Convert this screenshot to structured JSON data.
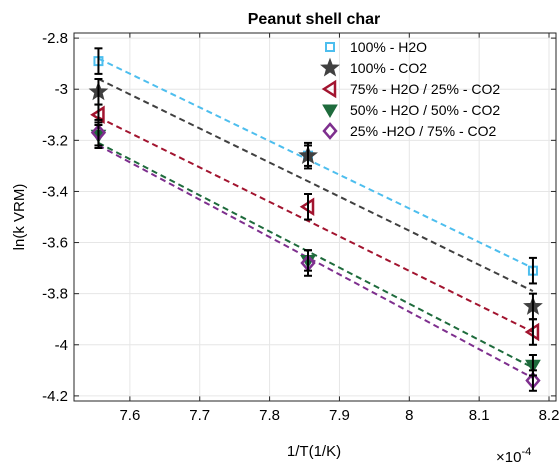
{
  "chart_data": {
    "type": "scatter",
    "title": "Peanut shell char",
    "xlabel": "1/T(1/K)",
    "ylabel": "ln(k VRM)",
    "x_multiplier_label": "×10",
    "x_multiplier_exponent": "-4",
    "x_ticks": [
      "7.6",
      "7.7",
      "7.8",
      "7.9",
      "8",
      "8.1",
      "8.2"
    ],
    "y_ticks": [
      "-2.8",
      "-3",
      "-3.2",
      "-3.4",
      "-3.6",
      "-3.8",
      "-4",
      "-4.2"
    ],
    "xlim": [
      7.52,
      8.21
    ],
    "ylim": [
      -4.22,
      -2.78
    ],
    "grid": true,
    "legend_position": "top-right",
    "series": [
      {
        "name": "100% - H2O",
        "marker": "square-icon",
        "color": "#4DBEEE",
        "x": [
          7.555,
          7.855,
          8.177
        ],
        "y": [
          -2.89,
          -3.26,
          -3.71
        ],
        "err": [
          0.05,
          0.04,
          0.05
        ],
        "fit": [
          [
            7.555,
            -2.88
          ],
          [
            8.177,
            -3.7
          ]
        ]
      },
      {
        "name": "100% - CO2",
        "marker": "star-icon",
        "color": "#404040",
        "x": [
          7.555,
          7.855,
          8.177
        ],
        "y": [
          -3.01,
          -3.26,
          -3.85
        ],
        "err": [
          0.05,
          0.05,
          0.05
        ],
        "fit": [
          [
            7.555,
            -2.96
          ],
          [
            8.177,
            -3.79
          ]
        ]
      },
      {
        "name": "75% - H2O / 25% - CO2",
        "marker": "triangle-left-icon",
        "color": "#A2142F",
        "x": [
          7.555,
          7.855,
          8.177
        ],
        "y": [
          -3.1,
          -3.46,
          -3.95
        ],
        "err": [
          0.04,
          0.05,
          0.05
        ],
        "fit": [
          [
            7.555,
            -3.11
          ],
          [
            8.177,
            -3.95
          ]
        ]
      },
      {
        "name": "50% - H2O / 50% - CO2",
        "marker": "triangle-down-icon",
        "color": "#1E6B3C",
        "x": [
          7.555,
          7.855,
          8.177
        ],
        "y": [
          -3.18,
          -3.67,
          -4.08
        ],
        "err": [
          0.05,
          0.04,
          0.04
        ],
        "fit": [
          [
            7.555,
            -3.21
          ],
          [
            8.177,
            -4.09
          ]
        ]
      },
      {
        "name": "25% -H2O / 75% - CO2",
        "marker": "diamond-icon",
        "color": "#7E2F8E",
        "x": [
          7.555,
          7.855,
          8.177
        ],
        "y": [
          -3.17,
          -3.68,
          -4.14
        ],
        "err": [
          0.05,
          0.05,
          0.04
        ],
        "fit": [
          [
            7.555,
            -3.22
          ],
          [
            8.177,
            -4.13
          ]
        ]
      }
    ]
  }
}
